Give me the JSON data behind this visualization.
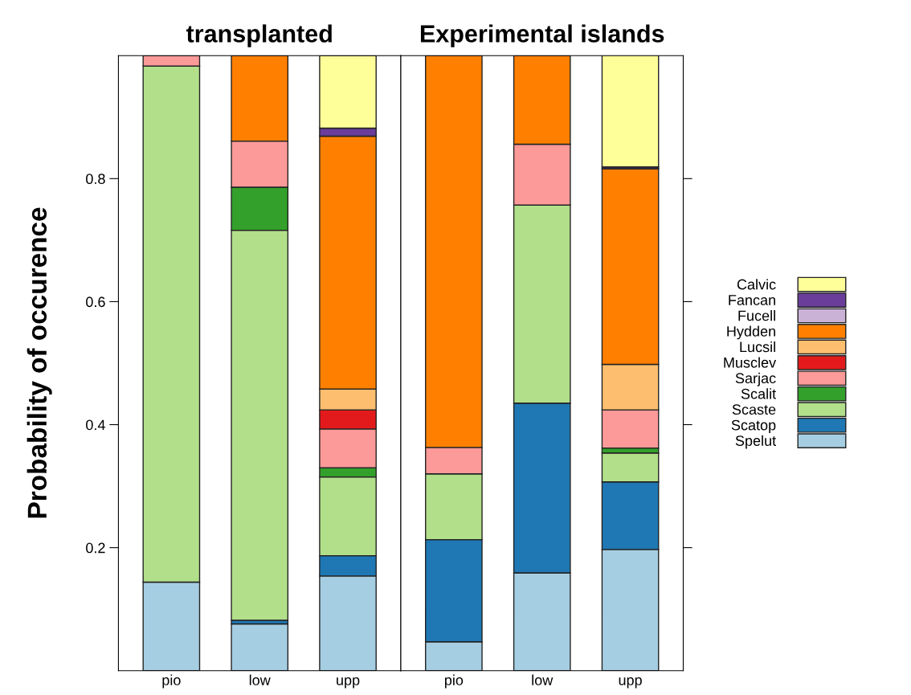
{
  "chart_data": [
    {
      "type": "bar",
      "title": "transplanted",
      "ylabel": "Probability of occurence",
      "categories": [
        "pio",
        "low",
        "upp"
      ],
      "stacked": true,
      "ylim": [
        0,
        1
      ],
      "yticks": [
        0.2,
        0.4,
        0.6,
        0.8
      ],
      "legend": false,
      "series": [
        {
          "color": "#a6cee3",
          "values": [
            0.144,
            0.076,
            0.154
          ]
        },
        {
          "color": "#1f78b4",
          "values": [
            0,
            0.006,
            0.033
          ]
        },
        {
          "color": "#b2df8a",
          "values": [
            0.839,
            0.634,
            0.128
          ]
        },
        {
          "color": "#33a02c",
          "values": [
            0,
            0.07,
            0.015
          ]
        },
        {
          "color": "#fb9a99",
          "values": [
            0.017,
            0.075,
            0.063
          ]
        },
        {
          "color": "#e31a1c",
          "values": [
            0,
            0,
            0.031
          ]
        },
        {
          "color": "#fdbf6f",
          "values": [
            0,
            0,
            0.034
          ]
        },
        {
          "color": "#ff7f00",
          "values": [
            0,
            0.139,
            0.411
          ]
        },
        {
          "color": "#cab2d6",
          "values": [
            0,
            0,
            0
          ]
        },
        {
          "color": "#6a3d9a",
          "values": [
            0,
            0,
            0.013
          ]
        },
        {
          "color": "#ffff99",
          "values": [
            0,
            0,
            0.118
          ]
        }
      ]
    },
    {
      "type": "bar",
      "title": "Experimental islands",
      "categories": [
        "pio",
        "low",
        "upp"
      ],
      "stacked": true,
      "ylim": [
        0,
        1
      ],
      "yticks": [
        0.2,
        0.4,
        0.6,
        0.8
      ],
      "tick_labels": "x",
      "legend": "right",
      "series": [
        {
          "name": "Spelut",
          "color": "#a6cee3",
          "values": [
            0.047,
            0.159,
            0.197
          ]
        },
        {
          "name": "Scatop",
          "color": "#1f78b4",
          "values": [
            0.166,
            0.276,
            0.11
          ]
        },
        {
          "name": "Scaste",
          "color": "#b2df8a",
          "values": [
            0.107,
            0.322,
            0.047
          ]
        },
        {
          "name": "Scalit",
          "color": "#33a02c",
          "values": [
            0,
            0,
            0.008
          ]
        },
        {
          "name": "Sarjac",
          "color": "#fb9a99",
          "values": [
            0.043,
            0.099,
            0.062
          ]
        },
        {
          "name": "Musclev",
          "color": "#e31a1c",
          "values": [
            0,
            0,
            0
          ]
        },
        {
          "name": "Lucsil",
          "color": "#fdbf6f",
          "values": [
            0,
            0,
            0.074
          ]
        },
        {
          "name": "Hydden",
          "color": "#ff7f00",
          "values": [
            0.637,
            0.144,
            0.318
          ]
        },
        {
          "name": "Fucell",
          "color": "#cab2d6",
          "values": [
            0,
            0,
            0
          ]
        },
        {
          "name": "Fancan",
          "color": "#6a3d9a",
          "values": [
            0,
            0,
            0.003
          ]
        },
        {
          "name": "Calvic",
          "color": "#ffff99",
          "values": [
            0,
            0,
            0.182
          ]
        }
      ]
    }
  ]
}
